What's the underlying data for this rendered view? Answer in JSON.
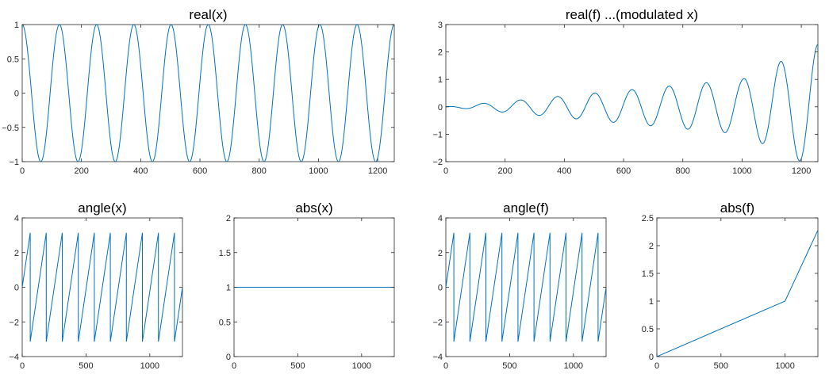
{
  "chart_data": [
    {
      "type": "line",
      "title": "real(x)",
      "xlim": [
        0,
        1256
      ],
      "ylim": [
        -1,
        1
      ],
      "xticks": [
        0,
        200,
        400,
        600,
        800,
        1000,
        1200
      ],
      "xticklabels": [
        "0",
        "200",
        "400",
        "600",
        "800",
        "1000",
        "1200"
      ],
      "yticks": [
        -1,
        -0.5,
        0,
        0.5,
        1
      ],
      "yticklabels": [
        "−1",
        "−0.5",
        "0",
        "0.5",
        "1"
      ],
      "function": "cos",
      "period": 125.6,
      "series": [
        {
          "color": "#0072bd"
        }
      ]
    },
    {
      "type": "line",
      "title": "real(f)  ...(modulated x)",
      "xlim": [
        0,
        1256
      ],
      "ylim": [
        -2,
        3
      ],
      "xticks": [
        0,
        200,
        400,
        600,
        800,
        1000,
        1200
      ],
      "xticklabels": [
        "0",
        "200",
        "400",
        "600",
        "800",
        "1000",
        "1200"
      ],
      "yticks": [
        -2,
        -1,
        0,
        1,
        2,
        3
      ],
      "yticklabels": [
        "−2",
        "−1",
        "0",
        "1",
        "2",
        "3"
      ],
      "function": "modulated_cos",
      "period": 125.6,
      "envelope_knots": [
        [
          0,
          0
        ],
        [
          1000,
          1
        ],
        [
          1256,
          2.28
        ]
      ],
      "series": [
        {
          "color": "#0072bd"
        }
      ]
    },
    {
      "type": "line",
      "title": "angle(x)",
      "xlim": [
        0,
        1256
      ],
      "ylim": [
        -4,
        4
      ],
      "xticks": [
        0,
        500,
        1000
      ],
      "xticklabels": [
        "0",
        "500",
        "1000"
      ],
      "yticks": [
        -4,
        -2,
        0,
        2,
        4
      ],
      "yticklabels": [
        "−4",
        "−2",
        "0",
        "2",
        "4"
      ],
      "function": "sawtooth",
      "period": 125.6,
      "amplitude": 3.1416,
      "series": [
        {
          "color": "#0072bd"
        }
      ]
    },
    {
      "type": "line",
      "title": "abs(x)",
      "xlim": [
        0,
        1256
      ],
      "ylim": [
        0,
        2
      ],
      "xticks": [
        0,
        500,
        1000
      ],
      "xticklabels": [
        "0",
        "500",
        "1000"
      ],
      "yticks": [
        0,
        0.5,
        1,
        1.5,
        2
      ],
      "yticklabels": [
        "0",
        "0.5",
        "1",
        "1.5",
        "2"
      ],
      "function": "constant",
      "value": 1,
      "series": [
        {
          "color": "#0072bd"
        }
      ]
    },
    {
      "type": "line",
      "title": "angle(f)",
      "xlim": [
        0,
        1256
      ],
      "ylim": [
        -4,
        4
      ],
      "xticks": [
        0,
        500,
        1000
      ],
      "xticklabels": [
        "0",
        "500",
        "1000"
      ],
      "yticks": [
        -4,
        -2,
        0,
        2,
        4
      ],
      "yticklabels": [
        "−4",
        "−2",
        "0",
        "2",
        "4"
      ],
      "function": "sawtooth",
      "period": 125.6,
      "amplitude": 3.1416,
      "series": [
        {
          "color": "#0072bd"
        }
      ]
    },
    {
      "type": "line",
      "title": "abs(f)",
      "xlim": [
        0,
        1256
      ],
      "ylim": [
        0,
        2.5
      ],
      "xticks": [
        0,
        500,
        1000
      ],
      "xticklabels": [
        "0",
        "500",
        "1000"
      ],
      "yticks": [
        0,
        0.5,
        1,
        1.5,
        2,
        2.5
      ],
      "yticklabels": [
        "0",
        "0.5",
        "1",
        "1.5",
        "2",
        "2.5"
      ],
      "function": "piecewise",
      "points": [
        [
          0,
          0
        ],
        [
          1000,
          1
        ],
        [
          1256,
          2.28
        ]
      ],
      "series": [
        {
          "color": "#0072bd"
        }
      ]
    }
  ]
}
